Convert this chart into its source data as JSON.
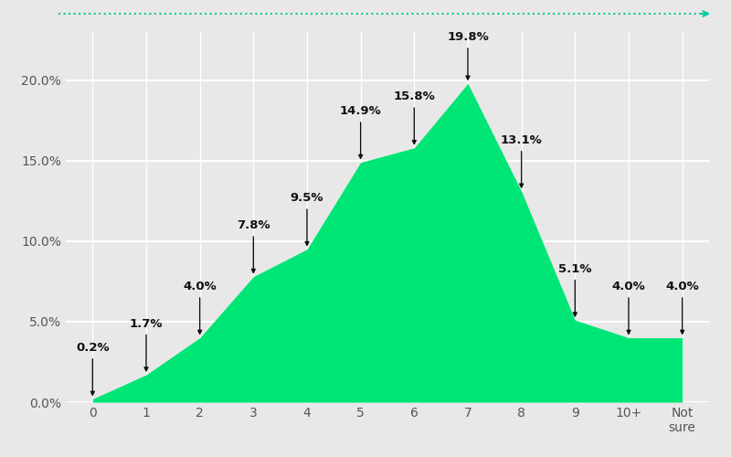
{
  "categories": [
    "0",
    "1",
    "2",
    "3",
    "4",
    "5",
    "6",
    "7",
    "8",
    "9",
    "10+",
    "Not\nsure"
  ],
  "values": [
    0.2,
    1.7,
    4.0,
    7.8,
    9.5,
    14.9,
    15.8,
    19.8,
    13.1,
    5.1,
    4.0,
    4.0
  ],
  "labels": [
    "0.2%",
    "1.7%",
    "4.0%",
    "7.8%",
    "9.5%",
    "14.9%",
    "15.8%",
    "19.8%",
    "13.1%",
    "5.1%",
    "4.0%",
    "4.0%"
  ],
  "fill_color": "#00e676",
  "background_color": "#e8e8e8",
  "grid_color": "#ffffff",
  "annotation_line_color": "#111111",
  "dotted_line_color": "#00c9a0",
  "ylim": [
    0,
    23
  ],
  "yticks": [
    0.0,
    5.0,
    10.0,
    15.0,
    20.0
  ],
  "ytick_labels": [
    "0.0%",
    "5.0%",
    "10.0%",
    "15.0%",
    "20.0%"
  ],
  "label_offsets": [
    2.5,
    2.5,
    2.5,
    2.5,
    2.5,
    2.5,
    2.5,
    2.5,
    2.5,
    2.5,
    2.5,
    2.5
  ]
}
